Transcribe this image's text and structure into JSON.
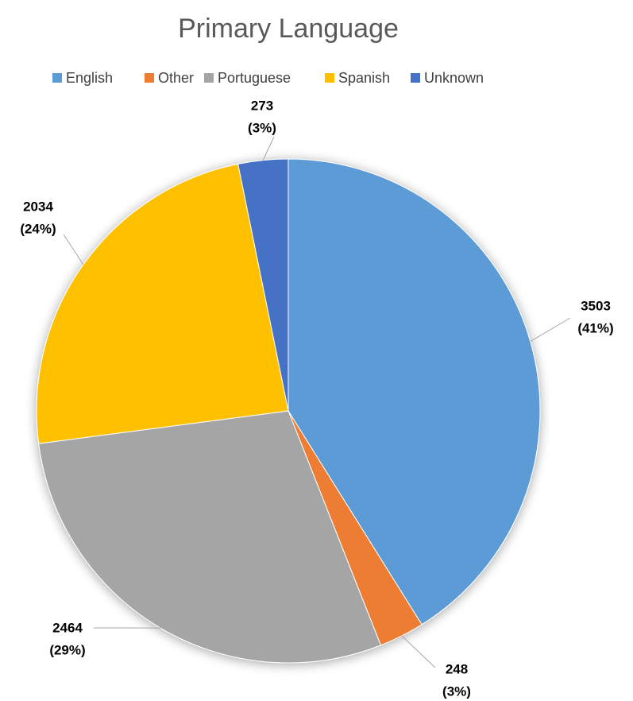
{
  "chart_data": {
    "type": "pie",
    "title": "Primary Language",
    "categories": [
      "English",
      "Other",
      "Portuguese",
      "Spanish",
      "Unknown"
    ],
    "values": [
      3503,
      248,
      2464,
      2034,
      273
    ],
    "value_labels": [
      [
        "3503",
        "(41%)"
      ],
      [
        "248",
        "(3%)"
      ],
      [
        "2464",
        "(29%)"
      ],
      [
        "2034",
        "(24%)"
      ],
      [
        "273",
        "(3%)"
      ]
    ],
    "colors": [
      "#5B9BD5",
      "#ED7D31",
      "#A5A5A5",
      "#FFC000",
      "#4472C4"
    ],
    "legend": "top"
  }
}
